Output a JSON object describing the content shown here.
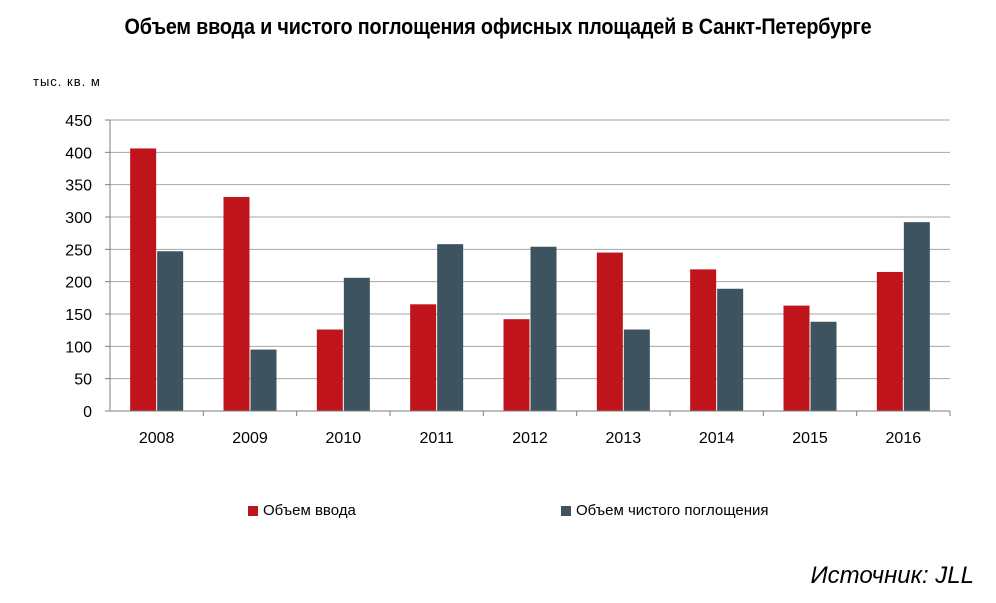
{
  "chart_data": {
    "type": "bar",
    "title": "Объем ввода и чистого поглощения офисных площадей в Санкт-Петербурге",
    "ylabel": "тыс. кв. м",
    "xlabel": "",
    "ylim": [
      0,
      450
    ],
    "yticks": [
      0,
      50,
      100,
      150,
      200,
      250,
      300,
      350,
      400,
      450
    ],
    "grid": true,
    "legend_position": "bottom",
    "categories": [
      "2008",
      "2009",
      "2010",
      "2011",
      "2012",
      "2013",
      "2014",
      "2015",
      "2016"
    ],
    "series": [
      {
        "name": "Объем ввода",
        "color": "#c0141c",
        "values": [
          406,
          331,
          126,
          165,
          142,
          245,
          219,
          163,
          215
        ]
      },
      {
        "name": "Объем чистого поглощения",
        "color": "#3d5360",
        "values": [
          247,
          95,
          206,
          258,
          254,
          126,
          189,
          138,
          292
        ]
      }
    ]
  },
  "source": "Источник: JLL"
}
